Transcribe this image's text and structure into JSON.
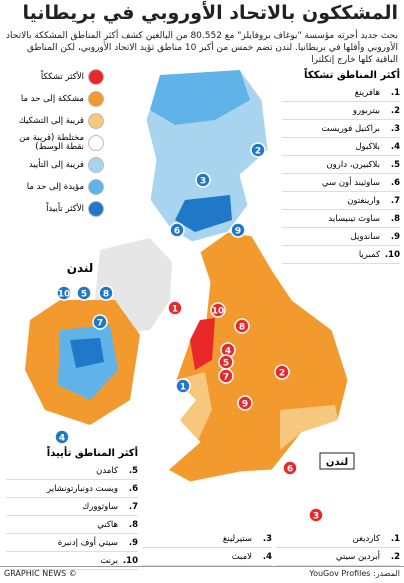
{
  "header": {
    "title": "المشككون بالاتحاد الأوروبي في بريطانيا",
    "intro": "بحث جديد أجرته مؤسسة \"يوغاف بروفايلز\" مع 80.552 من البالغين كشف أكثر المناطق المشككة بالاتحاد الأوروبي وأقلها في بريطانيا. لندن تضم خمس من أكبر 10 مناطق تؤيد الاتحاد الأوروبي، لكن المناطق الباقية كلها خارج إنكلترا"
  },
  "legend": {
    "items": [
      {
        "label": "الأكثر تشككاً",
        "color": "#e8282b"
      },
      {
        "label": "مشككة إلى حد ما",
        "color": "#f39a2e"
      },
      {
        "label": "قريبة إلى التشكيك",
        "color": "#f7c77e"
      },
      {
        "label": "مختلطة (قريبة من نقطة الوسط)",
        "color": "#ffffff"
      },
      {
        "label": "قريبة إلى التأييد",
        "color": "#a9d4f0"
      },
      {
        "label": "مؤيدة إلى حد ما",
        "color": "#5fb3e8"
      },
      {
        "label": "الأكثر تأييداً",
        "color": "#1f78c8"
      }
    ]
  },
  "sceptical": {
    "title": "أكثر المناطق تشككاً",
    "items": [
      {
        "rank": "1.",
        "name": "هافرينغ"
      },
      {
        "rank": "2.",
        "name": "بيتربورو"
      },
      {
        "rank": "3.",
        "name": "براكنيل فوريست"
      },
      {
        "rank": "4.",
        "name": "بلاكبول"
      },
      {
        "rank": "5.",
        "name": "بلاكبيرن، دارون"
      },
      {
        "rank": "6.",
        "name": "ساوثيند أون سي"
      },
      {
        "rank": "7.",
        "name": "وارينغتون"
      },
      {
        "rank": "8.",
        "name": "ساوث تينيسايد"
      },
      {
        "rank": "9.",
        "name": "ساندويل"
      },
      {
        "rank": "10.",
        "name": "كمبريا"
      }
    ]
  },
  "supportive": {
    "title": "أكثر المناطق تأييداً",
    "items": [
      {
        "rank": "5.",
        "name": "كامدن"
      },
      {
        "rank": "6.",
        "name": "ويست دونبارتونشاير"
      },
      {
        "rank": "7.",
        "name": "ساوثوورك"
      },
      {
        "rank": "8.",
        "name": "هاكني"
      },
      {
        "rank": "9.",
        "name": "سيتي أوف إدنبرة"
      },
      {
        "rank": "10.",
        "name": "برنت"
      }
    ],
    "middle": [
      {
        "rank": "3.",
        "name": "ستيرلينغ"
      },
      {
        "rank": "4.",
        "name": "لامبث"
      }
    ],
    "right": [
      {
        "rank": "1.",
        "name": "كارديغن"
      },
      {
        "rank": "2.",
        "name": "أبردين سيتي"
      }
    ]
  },
  "map": {
    "london_label": "لندن",
    "inset_title": "لندن",
    "sceptic_color": "#e8282b",
    "support_color": "#1f78c8",
    "sceptic_markers": [
      1,
      2,
      3,
      4,
      5,
      6,
      7,
      8,
      9,
      10
    ],
    "support_markers": [
      1,
      2,
      3,
      6,
      9,
      10,
      5,
      8,
      7,
      4
    ]
  },
  "footer": {
    "credit": "© GRAPHIC NEWS",
    "source": "المصدر: YouGov Profiles"
  }
}
